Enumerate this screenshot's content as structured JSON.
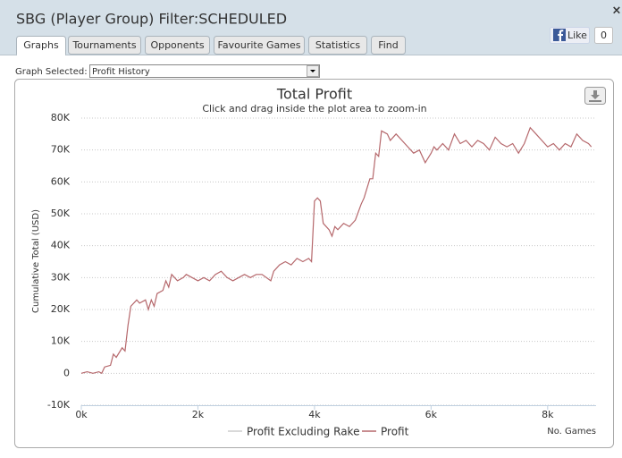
{
  "window": {
    "title": "SBG (Player Group) Filter:SCHEDULED",
    "close": "×",
    "tabs": [
      "Graphs",
      "Tournaments",
      "Opponents",
      "Favourite Games",
      "Statistics",
      "Find"
    ],
    "like": "Like",
    "like_count": 0,
    "graph_selected_label": "Graph Selected:",
    "graph_selected_value": "Profit History"
  },
  "chart_data": {
    "type": "line",
    "title": "Total Profit",
    "subtitle": "Click and drag inside the plot area to zoom-in",
    "y_label": "Cumulative Total (USD)",
    "x_label": "No. Games",
    "x": [
      0,
      100,
      200,
      300,
      350,
      400,
      500,
      550,
      600,
      700,
      750,
      800,
      850,
      950,
      1000,
      1100,
      1150,
      1200,
      1250,
      1300,
      1400,
      1450,
      1500,
      1550,
      1650,
      1750,
      1800,
      1900,
      2000,
      2100,
      2200,
      2300,
      2400,
      2500,
      2600,
      2700,
      2800,
      2900,
      3000,
      3100,
      3250,
      3300,
      3400,
      3500,
      3600,
      3700,
      3800,
      3900,
      3950,
      4000,
      4050,
      4100,
      4150,
      4250,
      4300,
      4350,
      4400,
      4500,
      4600,
      4700,
      4800,
      4850,
      4950,
      5000,
      5050,
      5100,
      5150,
      5250,
      5300,
      5400,
      5500,
      5600,
      5700,
      5800,
      5900,
      6000,
      6050,
      6100,
      6200,
      6300,
      6400,
      6500,
      6600,
      6700,
      6800,
      6900,
      7000,
      7100,
      7200,
      7300,
      7400,
      7500,
      7600,
      7700,
      7800,
      7900,
      8000,
      8100,
      8200,
      8300,
      8400,
      8500,
      8600,
      8700,
      8750
    ],
    "series": [
      {
        "name": "Profit Excluding Rake",
        "color": "#cccccc",
        "visible": false,
        "values": [
          null,
          null,
          null,
          null,
          null,
          null,
          null,
          null,
          null,
          null,
          null,
          null,
          null,
          null,
          null,
          null,
          null,
          null,
          null,
          null,
          null,
          null,
          null,
          null,
          null,
          null,
          null,
          null,
          null,
          null,
          null,
          null,
          null,
          null,
          null,
          null,
          null,
          null,
          null,
          null,
          null,
          null,
          null,
          null,
          null,
          null,
          null,
          null,
          null,
          null,
          null,
          null,
          null,
          null,
          null,
          null,
          null,
          null,
          null,
          null,
          null,
          null,
          null,
          null,
          null,
          null,
          null,
          null,
          null,
          null,
          null,
          null,
          null,
          null,
          null,
          null,
          null,
          null,
          null,
          null,
          null,
          null,
          null,
          null,
          null,
          null,
          null,
          null,
          null,
          null,
          null,
          null,
          null,
          null,
          null,
          null,
          null,
          null,
          null,
          null,
          null,
          null,
          null,
          null,
          null
        ]
      },
      {
        "name": "Profit",
        "color": "#b5676b",
        "visible": true,
        "values": [
          0,
          500,
          0,
          500,
          0,
          2000,
          2500,
          6000,
          5000,
          8000,
          7000,
          15000,
          21000,
          23000,
          22000,
          23000,
          20000,
          23000,
          21000,
          25000,
          26000,
          29000,
          27000,
          31000,
          29000,
          30000,
          31000,
          30000,
          29000,
          30000,
          29000,
          31000,
          32000,
          30000,
          29000,
          30000,
          31000,
          30000,
          31000,
          31000,
          29000,
          32000,
          34000,
          35000,
          34000,
          36000,
          35000,
          36000,
          35000,
          54000,
          55000,
          54000,
          47000,
          45000,
          43000,
          46000,
          45000,
          47000,
          46000,
          48000,
          53000,
          55000,
          61000,
          61000,
          69000,
          68000,
          76000,
          75000,
          73000,
          75000,
          73000,
          71000,
          69000,
          70000,
          66000,
          69000,
          71000,
          70000,
          72000,
          70000,
          75000,
          72000,
          73000,
          71000,
          73000,
          72000,
          70000,
          74000,
          72000,
          71000,
          72000,
          69000,
          72000,
          77000,
          75000,
          73000,
          71000,
          72000,
          70000,
          72000,
          71000,
          75000,
          73000,
          72000,
          71000
        ]
      }
    ],
    "xlim": [
      0,
      8800
    ],
    "ylim": [
      -10000,
      80000
    ],
    "xticks": [
      {
        "value": 0,
        "label": "0k"
      },
      {
        "value": 2000,
        "label": "2k"
      },
      {
        "value": 4000,
        "label": "4k"
      },
      {
        "value": 6000,
        "label": "6k"
      },
      {
        "value": 8000,
        "label": "8k"
      }
    ],
    "yticks": [
      {
        "value": -10000,
        "label": "-10K"
      },
      0,
      {
        "value": 10000,
        "label": "10K"
      },
      {
        "value": 20000,
        "label": "20K"
      },
      {
        "value": 30000,
        "label": "30K"
      },
      {
        "value": 40000,
        "label": "40K"
      },
      {
        "value": 50000,
        "label": "50K"
      },
      {
        "value": 60000,
        "label": "60K"
      },
      {
        "value": 70000,
        "label": "70K"
      },
      {
        "value": 80000,
        "label": "80K"
      }
    ],
    "grid": true
  }
}
